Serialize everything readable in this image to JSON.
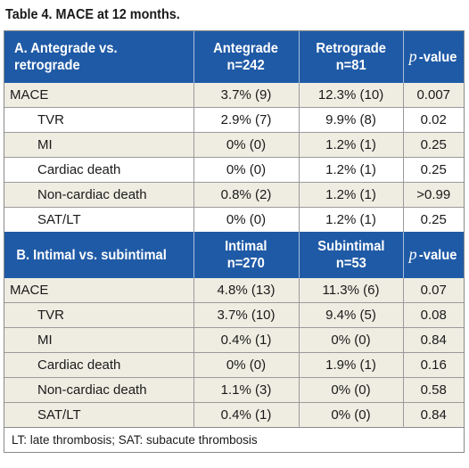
{
  "title": "Table 4. MACE at 12 months.",
  "sectionA": {
    "header": {
      "label_line1": "A. Antegrade vs.",
      "label_line2": "retrograde",
      "col2_line1": "Antegrade",
      "col2_line2": "n=242",
      "col3_line1": "Retrograde",
      "col3_line2": "n=81",
      "pvalue_p": "p",
      "pvalue_rest": "-value"
    },
    "rows": [
      {
        "label": "MACE",
        "v1": "3.7% (9)",
        "v2": "12.3% (10)",
        "p": "0.007"
      },
      {
        "label": "TVR",
        "v1": "2.9% (7)",
        "v2": "9.9% (8)",
        "p": "0.02"
      },
      {
        "label": "MI",
        "v1": "0% (0)",
        "v2": "1.2% (1)",
        "p": "0.25"
      },
      {
        "label": "Cardiac death",
        "v1": "0% (0)",
        "v2": "1.2% (1)",
        "p": "0.25"
      },
      {
        "label": "Non-cardiac death",
        "v1": "0.8% (2)",
        "v2": "1.2% (1)",
        "p": ">0.99"
      },
      {
        "label": "SAT/LT",
        "v1": "0% (0)",
        "v2": "1.2% (1)",
        "p": "0.25"
      }
    ]
  },
  "sectionB": {
    "header": {
      "label": "B. Intimal vs. subintimal",
      "col2_line1": "Intimal",
      "col2_line2": "n=270",
      "col3_line1": "Subintimal",
      "col3_line2": "n=53",
      "pvalue_p": "p",
      "pvalue_rest": "-value"
    },
    "rows": [
      {
        "label": "MACE",
        "v1": "4.8% (13)",
        "v2": "11.3% (6)",
        "p": "0.07"
      },
      {
        "label": "TVR",
        "v1": "3.7% (10)",
        "v2": "9.4% (5)",
        "p": "0.08"
      },
      {
        "label": "MI",
        "v1": "0.4% (1)",
        "v2": "0% (0)",
        "p": "0.84"
      },
      {
        "label": "Cardiac death",
        "v1": "0% (0)",
        "v2": "1.9% (1)",
        "p": "0.16"
      },
      {
        "label": "Non-cardiac death",
        "v1": "1.1% (3)",
        "v2": "0% (0)",
        "p": "0.58"
      },
      {
        "label": "SAT/LT",
        "v1": "0.4% (1)",
        "v2": "0% (0)",
        "p": "0.84"
      }
    ]
  },
  "footnote": "LT: late thrombosis; SAT: subacute thrombosis",
  "colors": {
    "header_bg": "#1f5aa6",
    "alt_row_bg": "#efede2"
  }
}
